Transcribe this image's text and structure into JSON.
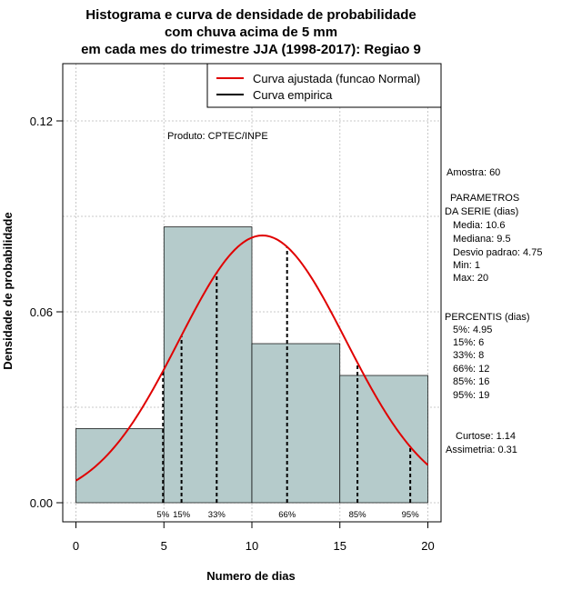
{
  "chart_data": {
    "type": "bar",
    "title_lines": [
      "Histograma e curva de densidade de probabilidade",
      "com chuva acima de 5 mm",
      "em cada mes do trimestre JJA (1998-2017): Regiao 9"
    ],
    "xlabel": "Numero de dias",
    "ylabel": "Densidade de probabilidade",
    "xlim": [
      -0.75,
      20.75
    ],
    "ylim": [
      -0.006,
      0.138
    ],
    "x_ticks": [
      0,
      5,
      10,
      15,
      20
    ],
    "y_ticks": [
      0.0,
      0.06,
      0.12
    ],
    "y_tick_labels": [
      "0.00",
      "0.06",
      "0.12"
    ],
    "grid": true,
    "bins": [
      {
        "from": 0,
        "to": 5,
        "density": 0.0233
      },
      {
        "from": 5,
        "to": 10,
        "density": 0.0867
      },
      {
        "from": 10,
        "to": 15,
        "density": 0.05
      },
      {
        "from": 15,
        "to": 20,
        "density": 0.04
      }
    ],
    "bar_color": "#b5cbcb",
    "normal_curve": {
      "mean": 10.6,
      "sd": 4.75,
      "color": "#e00000",
      "x_range": [
        0,
        20
      ]
    },
    "percentiles": [
      {
        "label": "5%",
        "x": 4.95
      },
      {
        "label": "15%",
        "x": 6
      },
      {
        "label": "33%",
        "x": 8
      },
      {
        "label": "66%",
        "x": 12
      },
      {
        "label": "85%",
        "x": 16
      },
      {
        "label": "95%",
        "x": 19
      }
    ],
    "legend": {
      "placement": "top-right",
      "entries": [
        {
          "label": "Curva ajustada (funcao Normal)",
          "color": "#e00000"
        },
        {
          "label": "Curva empirica",
          "color": "#000000"
        }
      ]
    },
    "annotation": "Produto: CPTEC/INPE"
  },
  "side_panel": {
    "sample": "Amostra: 60",
    "params_title_1": "PARAMETROS",
    "params_title_2": "DA SERIE (dias)",
    "params": [
      "Media: 10.6",
      "Mediana: 9.5",
      "Desvio padrao: 4.75",
      "Min: 1",
      "Max: 20"
    ],
    "pct_title": "PERCENTIS (dias)",
    "pct_values": [
      "5%: 4.95",
      "15%: 6",
      "33%: 8",
      "66%: 12",
      "85%: 16",
      "95%: 19"
    ],
    "kurtosis": "Curtose: 1.14",
    "skewness": "Assimetria: 0.31"
  }
}
